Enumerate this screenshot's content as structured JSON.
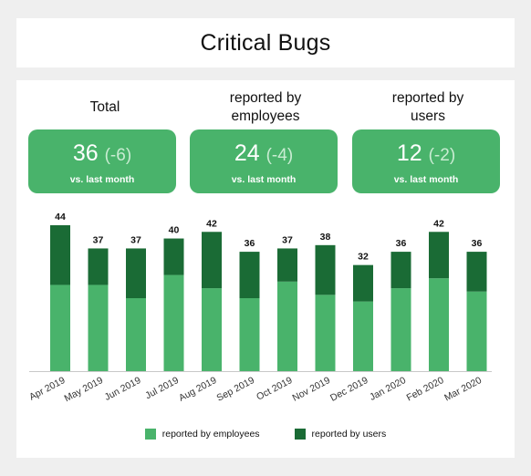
{
  "title": "Critical Bugs",
  "kpis": [
    {
      "label": "Total",
      "value": "36",
      "delta": "(-6)",
      "sub": "vs. last month"
    },
    {
      "label_line1": "reported by",
      "label_line2": "employees",
      "value": "24",
      "delta": "(-4)",
      "sub": "vs. last month"
    },
    {
      "label_line1": "reported by",
      "label_line2": "users",
      "value": "12",
      "delta": "(-2)",
      "sub": "vs. last month"
    }
  ],
  "colors": {
    "employees": "#49b36b",
    "users": "#1a6b35",
    "kpi_bg": "#49b36b"
  },
  "chart_data": {
    "type": "bar",
    "stacked": true,
    "categories": [
      "Apr 2019",
      "May 2019",
      "Jun 2019",
      "Jul 2019",
      "Aug 2019",
      "Sep 2019",
      "Oct 2019",
      "Nov 2019",
      "Dec 2019",
      "Jan 2020",
      "Feb 2020",
      "Mar 2020"
    ],
    "series": [
      {
        "name": "reported by employees",
        "values": [
          26,
          26,
          22,
          29,
          25,
          22,
          27,
          23,
          21,
          25,
          28,
          24
        ]
      },
      {
        "name": "reported by users",
        "values": [
          18,
          11,
          15,
          11,
          17,
          14,
          10,
          15,
          11,
          11,
          14,
          12
        ]
      }
    ],
    "totals": [
      44,
      37,
      37,
      40,
      42,
      36,
      37,
      38,
      32,
      36,
      42,
      36
    ],
    "ylim": [
      0,
      44
    ],
    "legend": "bottom"
  }
}
